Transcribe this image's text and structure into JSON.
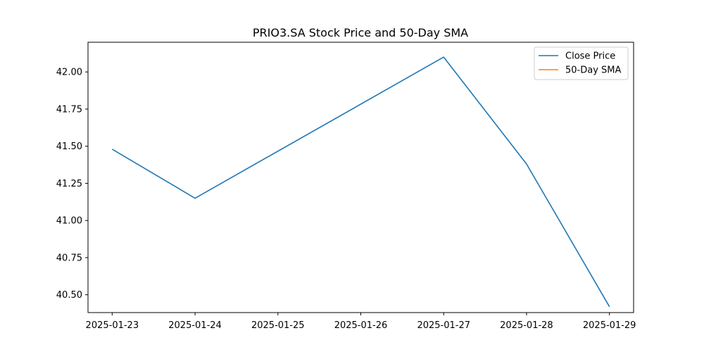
{
  "chart_data": {
    "type": "line",
    "title": "PRIO3.SA Stock Price and 50-Day SMA",
    "xlabel": "",
    "ylabel": "",
    "x": [
      "2025-01-23",
      "2025-01-24",
      "2025-01-25",
      "2025-01-26",
      "2025-01-27",
      "2025-01-28",
      "2025-01-29"
    ],
    "x_ticks": [
      "2025-01-23",
      "2025-01-24",
      "2025-01-25",
      "2025-01-26",
      "2025-01-27",
      "2025-01-28",
      "2025-01-29"
    ],
    "series": [
      {
        "name": "Close Price",
        "color": "#1f77b4",
        "points": [
          {
            "x": "2025-01-23",
            "y": 41.48
          },
          {
            "x": "2025-01-24",
            "y": 41.15
          },
          {
            "x": "2025-01-27",
            "y": 42.1
          },
          {
            "x": "2025-01-28",
            "y": 41.38
          },
          {
            "x": "2025-01-29",
            "y": 40.42
          }
        ]
      },
      {
        "name": "50-Day SMA",
        "color": "#ff7f0e",
        "points": []
      }
    ],
    "y_ticks": [
      "40.50",
      "40.75",
      "41.00",
      "41.25",
      "41.50",
      "41.75",
      "42.00"
    ],
    "ylim": [
      40.38,
      42.2
    ],
    "xlim": [
      "2025-01-22T17:00",
      "2025-01-29T07:00"
    ],
    "grid": false,
    "legend_position": "top-right"
  }
}
